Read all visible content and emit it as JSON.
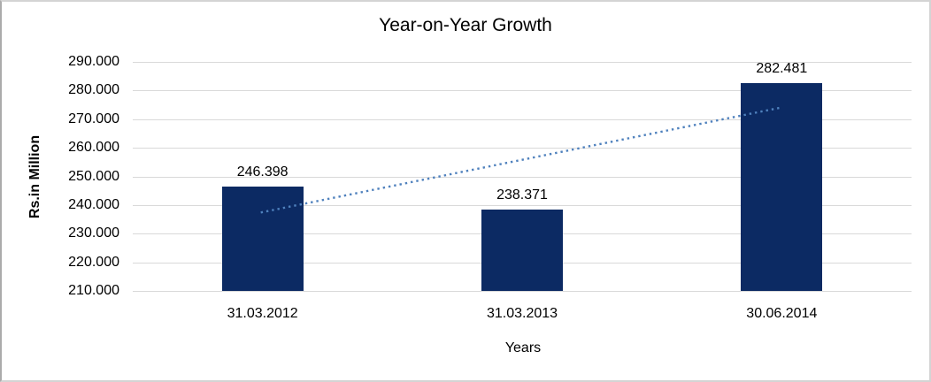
{
  "window": {
    "background": "#ffffff",
    "border_color": "#d4d4d4"
  },
  "chart_data": {
    "type": "bar",
    "title": "Year-on-Year Growth",
    "xlabel": "Years",
    "ylabel": "Rs.in Million",
    "categories": [
      "31.03.2012",
      "31.03.2013",
      "30.06.2014"
    ],
    "values": [
      246.398,
      238.371,
      282.481
    ],
    "data_labels": [
      "246.398",
      "238.371",
      "282.481"
    ],
    "y_ticks": [
      {
        "label": "290.000",
        "value": 290
      },
      {
        "label": "280.000",
        "value": 280
      },
      {
        "label": "270.000",
        "value": 270
      },
      {
        "label": "260.000",
        "value": 260
      },
      {
        "label": "250.000",
        "value": 250
      },
      {
        "label": "240.000",
        "value": 240
      },
      {
        "label": "230.000",
        "value": 230
      },
      {
        "label": "220.000",
        "value": 220
      },
      {
        "label": "210.000",
        "value": 210
      }
    ],
    "ylim": [
      210,
      290
    ],
    "grid": true,
    "legend": "none",
    "bar_color": "#0c2a63",
    "gridline_color": "#d9d9d9",
    "text_color": "#000000",
    "trendline": {
      "type": "linear",
      "style": "dotted",
      "color": "#4f81bd",
      "start_value": 237.4,
      "end_value": 274.1
    }
  }
}
